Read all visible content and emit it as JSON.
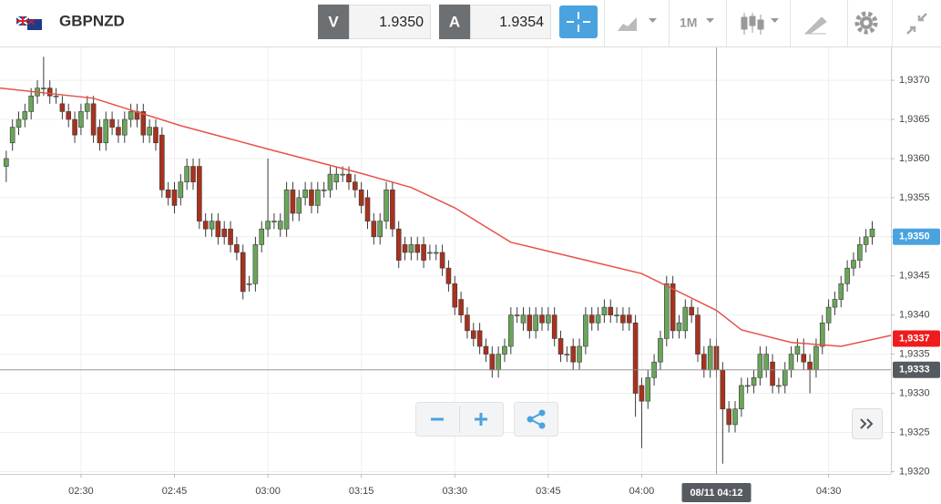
{
  "header": {
    "symbol": "GBPNZD",
    "bid_label": "V",
    "bid": "1.9350",
    "ask_label": "A",
    "ask": "1.9354",
    "timeframe": "1M"
  },
  "chart_data": {
    "type": "candlestick",
    "x": [
      "02:18",
      "02:19",
      "02:20",
      "02:21",
      "02:22",
      "02:23",
      "02:24",
      "02:25",
      "02:26",
      "02:27",
      "02:28",
      "02:29",
      "02:30",
      "02:31",
      "02:32",
      "02:33",
      "02:34",
      "02:35",
      "02:36",
      "02:37",
      "02:38",
      "02:39",
      "02:40",
      "02:41",
      "02:42",
      "02:43",
      "02:44",
      "02:45",
      "02:46",
      "02:47",
      "02:48",
      "02:49",
      "02:50",
      "02:51",
      "02:52",
      "02:53",
      "02:54",
      "02:55",
      "02:56",
      "02:57",
      "02:58",
      "02:59",
      "03:00",
      "03:01",
      "03:02",
      "03:03",
      "03:04",
      "03:05",
      "03:06",
      "03:07",
      "03:08",
      "03:09",
      "03:10",
      "03:11",
      "03:12",
      "03:13",
      "03:14",
      "03:15",
      "03:16",
      "03:17",
      "03:18",
      "03:19",
      "03:20",
      "03:21",
      "03:22",
      "03:23",
      "03:24",
      "03:25",
      "03:26",
      "03:27",
      "03:28",
      "03:29",
      "03:30",
      "03:31",
      "03:32",
      "03:33",
      "03:34",
      "03:35",
      "03:36",
      "03:37",
      "03:38",
      "03:39",
      "03:40",
      "03:41",
      "03:42",
      "03:43",
      "03:44",
      "03:45",
      "03:46",
      "03:47",
      "03:48",
      "03:49",
      "03:50",
      "03:51",
      "03:52",
      "03:53",
      "03:54",
      "03:55",
      "03:56",
      "03:57",
      "03:58",
      "03:59",
      "04:00",
      "04:01",
      "04:02",
      "04:03",
      "04:04",
      "04:05",
      "04:06",
      "04:07",
      "04:08",
      "04:09",
      "04:10",
      "04:11",
      "04:12",
      "04:13",
      "04:14",
      "04:15",
      "04:16",
      "04:17",
      "04:18",
      "04:19",
      "04:20",
      "04:21",
      "04:22",
      "04:23",
      "04:24",
      "04:25",
      "04:26",
      "04:27",
      "04:28",
      "04:29",
      "04:30",
      "04:31",
      "04:32",
      "04:33",
      "04:34",
      "04:35",
      "04:36",
      "04:37"
    ],
    "open": [
      1.9359,
      1.9362,
      1.9364,
      1.9365,
      1.9366,
      1.9368,
      1.9369,
      1.9369,
      1.9368,
      1.9367,
      1.9366,
      1.9365,
      1.9364,
      1.9366,
      1.9367,
      1.9364,
      1.9362,
      1.9365,
      1.9364,
      1.9363,
      1.9365,
      1.9366,
      1.9366,
      1.9363,
      1.9364,
      1.9363,
      1.9356,
      1.9356,
      1.9355,
      1.9357,
      1.9359,
      1.9359,
      1.9352,
      1.9351,
      1.9352,
      1.9351,
      1.9351,
      1.9349,
      1.9348,
      1.9344,
      1.9344,
      1.9349,
      1.9351,
      1.9352,
      1.9351,
      1.9351,
      1.9356,
      1.9353,
      1.9355,
      1.9356,
      1.9354,
      1.9356,
      1.9356,
      1.9357,
      1.9358,
      1.9358,
      1.9357,
      1.9356,
      1.9355,
      1.9352,
      1.935,
      1.9352,
      1.9356,
      1.9351,
      1.9349,
      1.9348,
      1.9349,
      1.9349,
      1.9348,
      1.9348,
      1.9348,
      1.9346,
      1.9344,
      1.9342,
      1.934,
      1.9338,
      1.9338,
      1.9336,
      1.9335,
      1.9333,
      1.9335,
      1.9336,
      1.934,
      1.9339,
      1.934,
      1.9338,
      1.934,
      1.9339,
      1.934,
      1.9337,
      1.9335,
      1.9336,
      1.9334,
      1.9336,
      1.934,
      1.9339,
      1.934,
      1.9341,
      1.934,
      1.934,
      1.934,
      1.9339,
      1.9331,
      1.9329,
      1.9332,
      1.9334,
      1.9337,
      1.9344,
      1.9338,
      1.9338,
      1.9341,
      1.934,
      1.9335,
      1.9333,
      1.9336,
      1.9333,
      1.9328,
      1.9326,
      1.9328,
      1.9331,
      1.9331,
      1.9332,
      1.9333,
      1.9334,
      1.9331,
      1.9331,
      1.9333,
      1.9335,
      1.9335,
      1.9334,
      1.9333,
      1.9336,
      1.9339,
      1.9341,
      1.9342,
      1.9344,
      1.9346,
      1.9347,
      1.9349,
      1.935
    ],
    "high": [
      1.9361,
      1.9365,
      1.9366,
      1.9367,
      1.9369,
      1.937,
      1.9373,
      1.937,
      1.9369,
      1.9368,
      1.9367,
      1.9366,
      1.9367,
      1.9368,
      1.9368,
      1.9365,
      1.9366,
      1.9366,
      1.9365,
      1.9366,
      1.9367,
      1.9367,
      1.9367,
      1.9365,
      1.9365,
      1.9364,
      1.9357,
      1.9357,
      1.9358,
      1.936,
      1.936,
      1.936,
      1.9353,
      1.9353,
      1.9353,
      1.9352,
      1.9352,
      1.935,
      1.9349,
      1.9345,
      1.935,
      1.9352,
      1.936,
      1.9353,
      1.9353,
      1.9357,
      1.9357,
      1.9356,
      1.9357,
      1.9357,
      1.9357,
      1.9357,
      1.9359,
      1.9359,
      1.9359,
      1.9359,
      1.9358,
      1.9357,
      1.9356,
      1.9353,
      1.9353,
      1.9357,
      1.9357,
      1.9352,
      1.935,
      1.935,
      1.935,
      1.935,
      1.9349,
      1.9349,
      1.9349,
      1.9347,
      1.9345,
      1.9343,
      1.9341,
      1.9339,
      1.9339,
      1.9337,
      1.9336,
      1.9336,
      1.9337,
      1.9341,
      1.9341,
      1.9341,
      1.9341,
      1.9341,
      1.9341,
      1.9341,
      1.9341,
      1.9338,
      1.9336,
      1.9337,
      1.9337,
      1.9341,
      1.9341,
      1.9341,
      1.9342,
      1.9342,
      1.9341,
      1.9341,
      1.9341,
      1.934,
      1.9332,
      1.9333,
      1.9335,
      1.9338,
      1.9345,
      1.9345,
      1.934,
      1.9342,
      1.9342,
      1.9341,
      1.9336,
      1.9337,
      1.9337,
      1.9334,
      1.9329,
      1.9329,
      1.9332,
      1.9332,
      1.9333,
      1.9336,
      1.9336,
      1.9335,
      1.9332,
      1.9334,
      1.9336,
      1.9337,
      1.9337,
      1.9335,
      1.9337,
      1.934,
      1.9342,
      1.9343,
      1.9345,
      1.9347,
      1.9348,
      1.935,
      1.9351,
      1.9352
    ],
    "low": [
      1.9357,
      1.9361,
      1.9363,
      1.9364,
      1.9365,
      1.9367,
      1.9368,
      1.9367,
      1.9367,
      1.9365,
      1.9364,
      1.9362,
      1.9363,
      1.9365,
      1.9362,
      1.9361,
      1.9361,
      1.9363,
      1.9362,
      1.9362,
      1.9364,
      1.9364,
      1.9362,
      1.9362,
      1.9361,
      1.9355,
      1.9354,
      1.9353,
      1.9354,
      1.9356,
      1.9356,
      1.9351,
      1.935,
      1.935,
      1.9349,
      1.9349,
      1.9348,
      1.9347,
      1.9342,
      1.9343,
      1.9343,
      1.9348,
      1.935,
      1.9351,
      1.935,
      1.935,
      1.9352,
      1.9352,
      1.9354,
      1.9353,
      1.9353,
      1.9355,
      1.9355,
      1.9356,
      1.9357,
      1.9356,
      1.9355,
      1.9353,
      1.9351,
      1.9349,
      1.9349,
      1.9351,
      1.935,
      1.9346,
      1.9347,
      1.9347,
      1.9347,
      1.9346,
      1.9347,
      1.9347,
      1.9345,
      1.9343,
      1.934,
      1.9339,
      1.9337,
      1.9336,
      1.9335,
      1.9334,
      1.9332,
      1.9332,
      1.9334,
      1.9335,
      1.9339,
      1.9338,
      1.9337,
      1.9337,
      1.9338,
      1.9338,
      1.9336,
      1.9334,
      1.9334,
      1.9333,
      1.9333,
      1.9335,
      1.9338,
      1.9338,
      1.9339,
      1.9339,
      1.9339,
      1.9338,
      1.9338,
      1.9327,
      1.9323,
      1.9328,
      1.9331,
      1.9333,
      1.9336,
      1.9337,
      1.9337,
      1.9337,
      1.9339,
      1.9334,
      1.9332,
      1.9332,
      1.9332,
      1.9321,
      1.9325,
      1.9325,
      1.9327,
      1.933,
      1.933,
      1.9331,
      1.9332,
      1.933,
      1.933,
      1.933,
      1.9332,
      1.9334,
      1.9333,
      1.933,
      1.9332,
      1.9335,
      1.9338,
      1.934,
      1.9341,
      1.9343,
      1.9345,
      1.9346,
      1.9348,
      1.9349
    ],
    "close": [
      1.936,
      1.9364,
      1.9365,
      1.9366,
      1.9368,
      1.9369,
      1.9369,
      1.9368,
      1.9368,
      1.9366,
      1.9365,
      1.9363,
      1.9366,
      1.9367,
      1.9363,
      1.9362,
      1.9365,
      1.9364,
      1.9363,
      1.9365,
      1.9366,
      1.9365,
      1.9363,
      1.9364,
      1.9362,
      1.9356,
      1.9355,
      1.9354,
      1.9357,
      1.9359,
      1.9357,
      1.9352,
      1.9351,
      1.9352,
      1.935,
      1.935,
      1.9349,
      1.9348,
      1.9343,
      1.9344,
      1.9349,
      1.9351,
      1.9352,
      1.9352,
      1.9352,
      1.9356,
      1.9353,
      1.9355,
      1.9356,
      1.9354,
      1.9356,
      1.9356,
      1.9358,
      1.9358,
      1.9358,
      1.9357,
      1.9356,
      1.9354,
      1.9352,
      1.935,
      1.9352,
      1.9356,
      1.9351,
      1.9347,
      1.9348,
      1.9349,
      1.9348,
      1.9347,
      1.9348,
      1.9348,
      1.9346,
      1.9344,
      1.9341,
      1.934,
      1.9338,
      1.9337,
      1.9336,
      1.9335,
      1.9333,
      1.9335,
      1.9336,
      1.934,
      1.934,
      1.934,
      1.9338,
      1.934,
      1.9339,
      1.934,
      1.9337,
      1.9335,
      1.9335,
      1.9334,
      1.9336,
      1.934,
      1.9339,
      1.934,
      1.9341,
      1.934,
      1.934,
      1.9339,
      1.9339,
      1.933,
      1.9329,
      1.9332,
      1.9334,
      1.9337,
      1.9344,
      1.9338,
      1.9339,
      1.9341,
      1.934,
      1.9335,
      1.9333,
      1.9336,
      1.9333,
      1.9328,
      1.9326,
      1.9328,
      1.9331,
      1.9331,
      1.9332,
      1.9335,
      1.9335,
      1.9331,
      1.9331,
      1.9333,
      1.9335,
      1.9336,
      1.9334,
      1.9333,
      1.9336,
      1.9339,
      1.9341,
      1.9342,
      1.9344,
      1.9346,
      1.9347,
      1.9349,
      1.935,
      1.9351
    ],
    "up_color": "#6aa55a",
    "down_color": "#a8321e",
    "ma": {
      "color": "#e8524a",
      "x": [
        "02:17",
        "02:32",
        "02:46",
        "03:01",
        "03:15",
        "03:23",
        "03:30",
        "03:39",
        "04:00",
        "04:12",
        "04:16",
        "04:24",
        "04:32",
        "04:40"
      ],
      "values": [
        1.9369,
        1.93677,
        1.93642,
        1.9361,
        1.93581,
        1.93563,
        1.93537,
        1.93493,
        1.93453,
        1.93406,
        1.93381,
        1.93365,
        1.9336,
        1.93374
      ]
    },
    "xlim": [
      "02:17",
      "04:40"
    ],
    "xticks": [
      "02:30",
      "02:45",
      "03:00",
      "03:15",
      "03:30",
      "03:45",
      "04:00",
      "04:30"
    ],
    "ylim": [
      1.93197,
      1.93742
    ],
    "yticks": [
      {
        "value": 1.937,
        "label": "1,9370"
      },
      {
        "value": 1.9365,
        "label": "1,9365"
      },
      {
        "value": 1.936,
        "label": "1,9360"
      },
      {
        "value": 1.9355,
        "label": "1,9355"
      },
      {
        "value": 1.935,
        "label": "1,9350"
      },
      {
        "value": 1.9345,
        "label": "1,9345"
      },
      {
        "value": 1.934,
        "label": "1,9340"
      },
      {
        "value": 1.9335,
        "label": "1,9335"
      },
      {
        "value": 1.933,
        "label": "1,9330"
      },
      {
        "value": 1.9325,
        "label": "1,9325"
      },
      {
        "value": 1.932,
        "label": "1,9320"
      }
    ],
    "grid": true,
    "price_lines": [
      {
        "value": 1.935,
        "label": "1,9350",
        "color": "#4aa3df",
        "line": false
      },
      {
        "value": 1.9337,
        "label": "1,9337",
        "color": "#ee1c1c",
        "line": false
      },
      {
        "value": 1.9333,
        "label": "1,9333",
        "color": "#555b60",
        "line": true
      }
    ],
    "crosshair": {
      "x": "04:12",
      "label": "08/11 04:12"
    }
  }
}
